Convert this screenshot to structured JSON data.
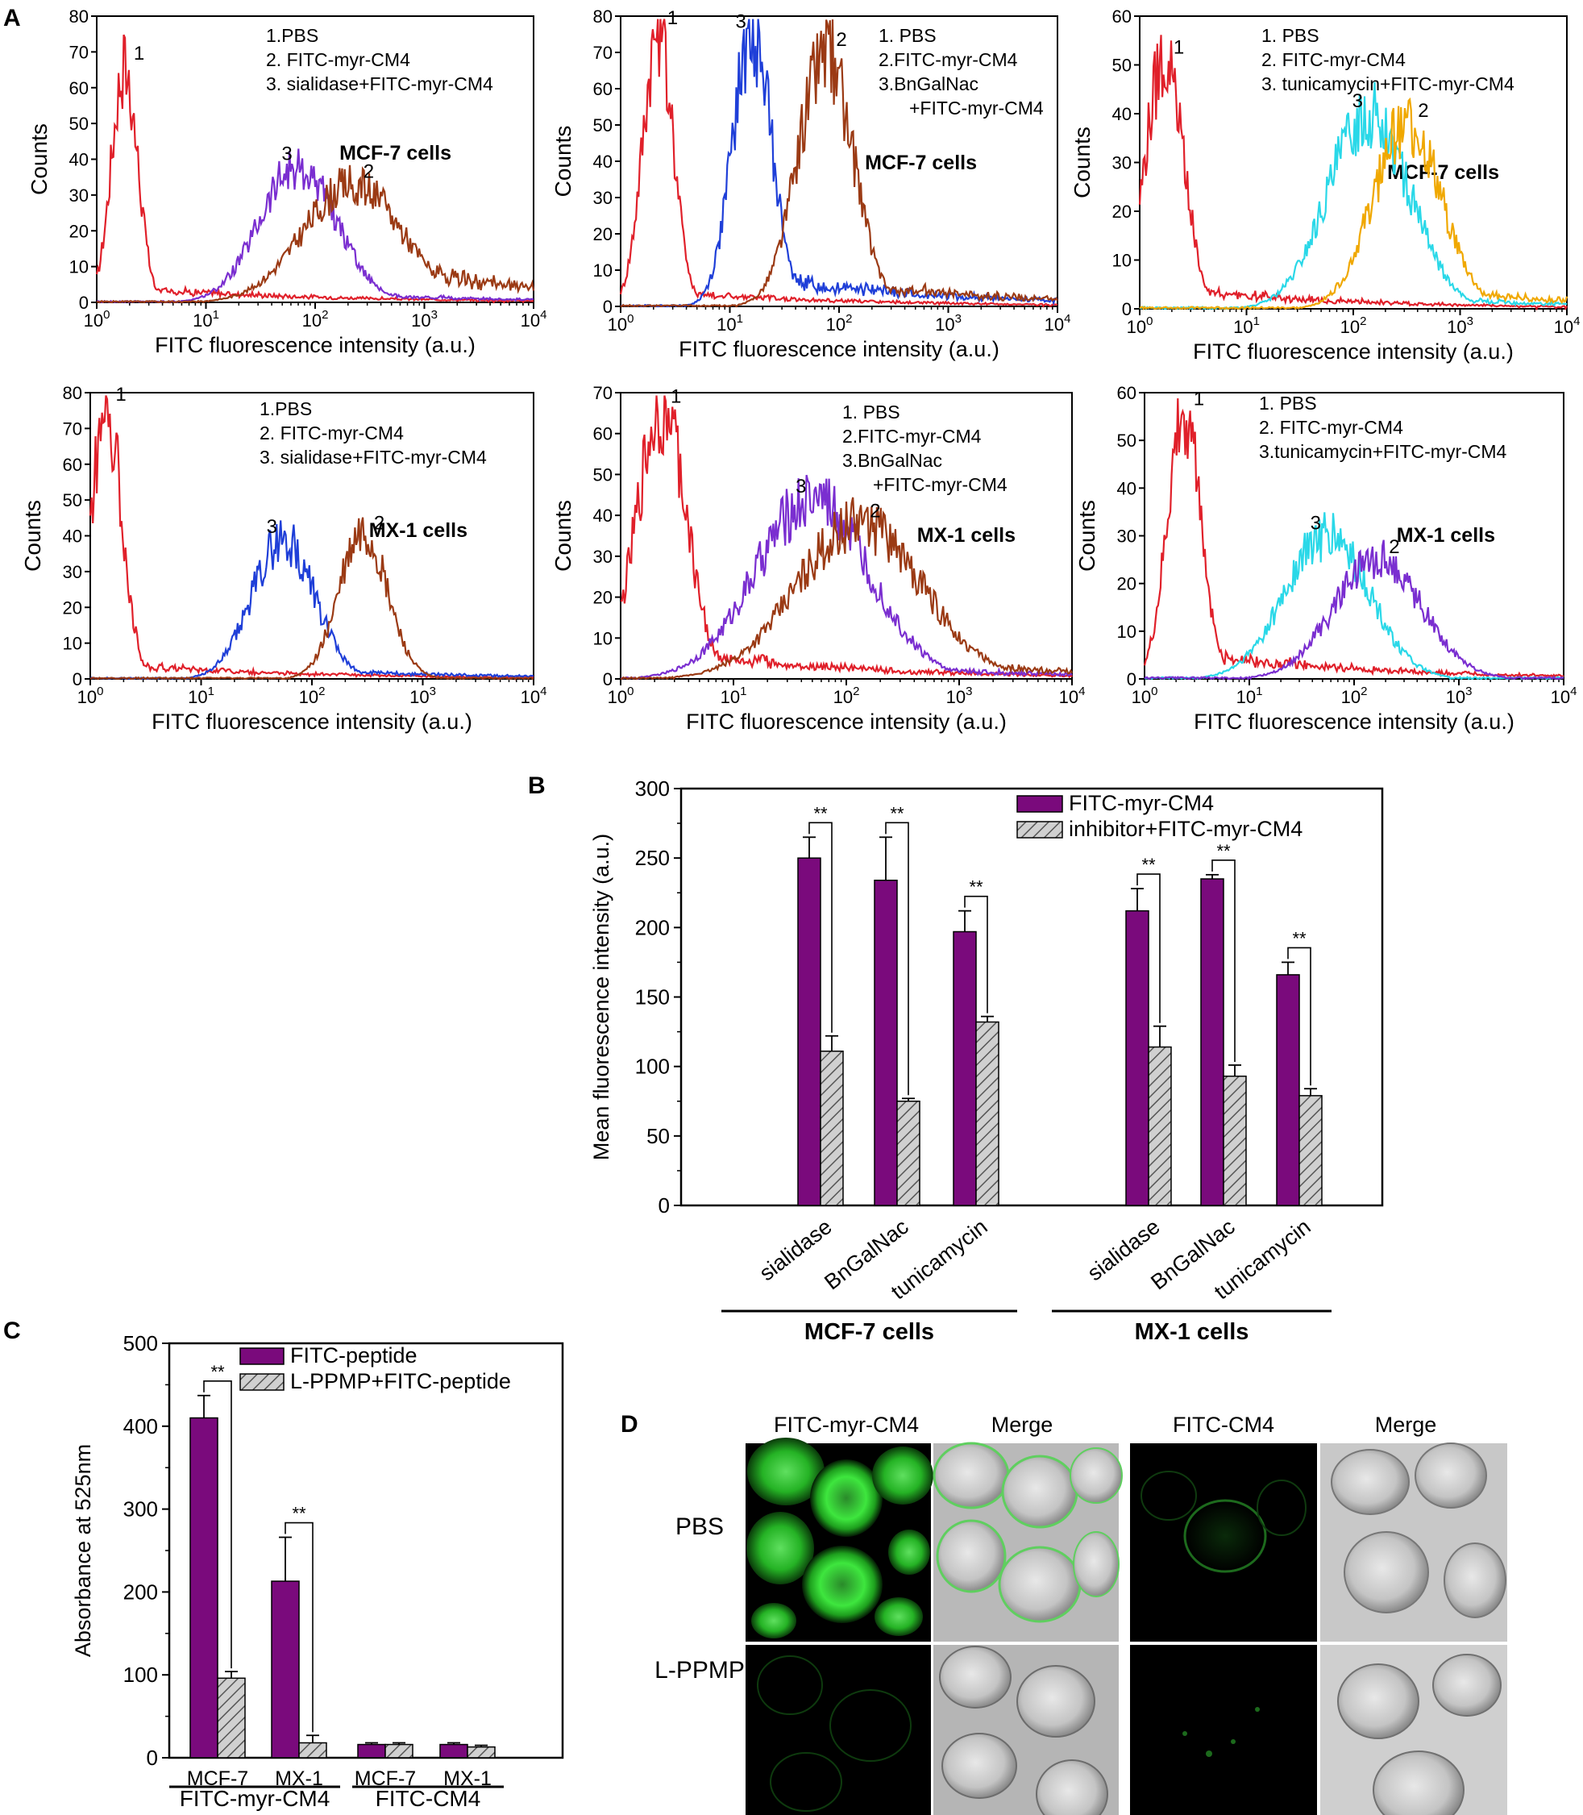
{
  "panels": [
    {
      "label": "A"
    },
    {
      "label": "B"
    },
    {
      "label": "C"
    },
    {
      "label": "D"
    }
  ],
  "colors": {
    "red": "#e0202a",
    "brown": "#9b3a14",
    "violet": "#7a2ed0",
    "blue": "#1f3fd8",
    "cyan": "#2ad8e8",
    "orange": "#f0a800",
    "purple": "#7a0a7c",
    "hatch": "#8a8a8a"
  },
  "chart_data": [
    {
      "id": "A1",
      "type": "line",
      "x_scale": "log",
      "xlim": [
        1,
        10000
      ],
      "ylim": [
        0,
        80
      ],
      "yticks": [
        0,
        10,
        20,
        30,
        40,
        50,
        60,
        70,
        80
      ],
      "xlabel": "FITC fluorescence intensity (a.u.)",
      "ylabel": "Counts",
      "cell_label": "MCF-7 cells",
      "legend": [
        "1.PBS",
        "2. FITC-myr-CM4",
        "3. sialidase+FITC-myr-CM4"
      ],
      "series": [
        {
          "name": "1",
          "color": "red",
          "center": 1.8,
          "width": 0.12,
          "peak": 66,
          "tail": 3
        },
        {
          "name": "3",
          "color": "violet",
          "center": 70,
          "width": 0.35,
          "peak": 38,
          "tail": 2
        },
        {
          "name": "2",
          "color": "brown",
          "center": 220,
          "width": 0.45,
          "peak": 33,
          "tail": 8
        }
      ]
    },
    {
      "id": "A2",
      "type": "line",
      "x_scale": "log",
      "xlim": [
        1,
        10000
      ],
      "ylim": [
        0,
        80
      ],
      "yticks": [
        0,
        10,
        20,
        30,
        40,
        50,
        60,
        70,
        80
      ],
      "xlabel": "FITC fluorescence intensity (a.u.)",
      "ylabel": "Counts",
      "cell_label": "MCF-7 cells",
      "legend": [
        "1. PBS",
        "2.FITC-myr-CM4",
        "3.BnGalNac",
        "+FITC-myr-CM4"
      ],
      "series": [
        {
          "name": "1",
          "color": "red",
          "center": 2.2,
          "width": 0.14,
          "peak": 76,
          "tail": 3
        },
        {
          "name": "3",
          "color": "blue",
          "center": 16,
          "width": 0.18,
          "peak": 75,
          "tail": 6
        },
        {
          "name": "2",
          "color": "brown",
          "center": 75,
          "width": 0.25,
          "peak": 70,
          "tail": 5
        }
      ]
    },
    {
      "id": "A3",
      "type": "line",
      "x_scale": "log",
      "xlim": [
        1,
        10000
      ],
      "ylim": [
        0,
        60
      ],
      "yticks": [
        0,
        10,
        20,
        30,
        40,
        50,
        60
      ],
      "xlabel": "FITC fluorescence intensity (a.u.)",
      "ylabel": "Counts",
      "cell_label": "MCF-7 cells",
      "legend": [
        "1. PBS",
        "2. FITC-myr-CM4",
        "3. tunicamycin+FITC-myr-CM4"
      ],
      "series": [
        {
          "name": "1",
          "color": "red",
          "center": 1.7,
          "width": 0.18,
          "peak": 51,
          "tail": 3
        },
        {
          "name": "3",
          "color": "cyan",
          "center": 140,
          "width": 0.38,
          "peak": 40,
          "tail": 2
        },
        {
          "name": "2",
          "color": "orange",
          "center": 320,
          "width": 0.32,
          "peak": 38,
          "tail": 3
        }
      ]
    },
    {
      "id": "A4",
      "type": "line",
      "x_scale": "log",
      "xlim": [
        1,
        10000
      ],
      "ylim": [
        0,
        80
      ],
      "yticks": [
        0,
        10,
        20,
        30,
        40,
        50,
        60,
        70,
        80
      ],
      "xlabel": "FITC fluorescence intensity (a.u.)",
      "ylabel": "Counts",
      "cell_label": "MX-1 cells",
      "legend": [
        "1.PBS",
        "2. FITC-myr-CM4",
        "3. sialidase+FITC-myr-CM4"
      ],
      "series": [
        {
          "name": "1",
          "color": "red",
          "center": 1.4,
          "width": 0.14,
          "peak": 76,
          "tail": 3
        },
        {
          "name": "3",
          "color": "blue",
          "center": 55,
          "width": 0.28,
          "peak": 39,
          "tail": 2
        },
        {
          "name": "2",
          "color": "brown",
          "center": 290,
          "width": 0.22,
          "peak": 40,
          "tail": 0
        }
      ]
    },
    {
      "id": "A5",
      "type": "line",
      "x_scale": "log",
      "xlim": [
        1,
        10000
      ],
      "ylim": [
        0,
        70
      ],
      "yticks": [
        0,
        10,
        20,
        30,
        40,
        50,
        60,
        70
      ],
      "xlabel": "FITC fluorescence intensity (a.u.)",
      "ylabel": "Counts",
      "cell_label": "MX-1 cells",
      "legend": [
        "1. PBS",
        "2.FITC-myr-CM4",
        "3.BnGalNac",
        "+FITC-myr-CM4"
      ],
      "series": [
        {
          "name": "1",
          "color": "red",
          "center": 2.3,
          "width": 0.22,
          "peak": 66,
          "tail": 5
        },
        {
          "name": "3",
          "color": "violet",
          "center": 50,
          "width": 0.5,
          "peak": 44,
          "tail": 3
        },
        {
          "name": "2",
          "color": "brown",
          "center": 130,
          "width": 0.55,
          "peak": 38,
          "tail": 4
        }
      ]
    },
    {
      "id": "A6",
      "type": "line",
      "x_scale": "log",
      "xlim": [
        1,
        10000
      ],
      "ylim": [
        0,
        60
      ],
      "yticks": [
        0,
        10,
        20,
        30,
        40,
        50,
        60
      ],
      "xlabel": "FITC fluorescence intensity (a.u.)",
      "ylabel": "Counts",
      "cell_label": "MX-1 cells",
      "legend": [
        "1. PBS",
        "2. FITC-myr-CM4",
        "3.tunicamycin+FITC-myr-CM4"
      ],
      "series": [
        {
          "name": "1",
          "color": "red",
          "center": 2.4,
          "width": 0.16,
          "peak": 56,
          "tail": 4
        },
        {
          "name": "3",
          "color": "cyan",
          "center": 55,
          "width": 0.4,
          "peak": 30,
          "tail": 0
        },
        {
          "name": "2",
          "color": "violet",
          "center": 170,
          "width": 0.42,
          "peak": 25,
          "tail": 0
        }
      ]
    },
    {
      "id": "B",
      "type": "bar",
      "ylabel": "Mean fluorescence intensity (a.u.)",
      "ylim": [
        0,
        300
      ],
      "yticks": [
        0,
        50,
        100,
        150,
        200,
        250,
        300
      ],
      "legend": [
        "FITC-myr-CM4",
        "inhibitor+FITC-myr-CM4"
      ],
      "significance": "**",
      "groups": [
        {
          "name": "MCF-7 cells",
          "categories": [
            "sialidase",
            "BnGalNac",
            "tunicamycin"
          ],
          "series": [
            {
              "name": "FITC-myr-CM4",
              "values": [
                250,
                234,
                197
              ],
              "errors": [
                15,
                31,
                15
              ]
            },
            {
              "name": "inhibitor+FITC-myr-CM4",
              "values": [
                111,
                75,
                132
              ],
              "errors": [
                11,
                2,
                4
              ]
            }
          ]
        },
        {
          "name": "MX-1 cells",
          "categories": [
            "sialidase",
            "BnGalNac",
            "tunicamycin"
          ],
          "series": [
            {
              "name": "FITC-myr-CM4",
              "values": [
                212,
                235,
                166
              ],
              "errors": [
                16,
                3,
                9
              ]
            },
            {
              "name": "inhibitor+FITC-myr-CM4",
              "values": [
                114,
                93,
                79
              ],
              "errors": [
                15,
                8,
                5
              ]
            }
          ]
        }
      ]
    },
    {
      "id": "C",
      "type": "bar",
      "ylabel": "Absorbance at 525nm",
      "ylim": [
        0,
        500
      ],
      "yticks": [
        0,
        100,
        200,
        300,
        400,
        500
      ],
      "legend": [
        "FITC-peptide",
        "L-PPMP+FITC-peptide"
      ],
      "significance": "**",
      "groups": [
        {
          "name": "FITC-myr-CM4",
          "categories": [
            "MCF-7",
            "MX-1"
          ],
          "series": [
            {
              "name": "FITC-peptide",
              "values": [
                410,
                213
              ],
              "errors": [
                27,
                53
              ]
            },
            {
              "name": "L-PPMP+FITC-peptide",
              "values": [
                96,
                18
              ],
              "errors": [
                8,
                9
              ]
            }
          ]
        },
        {
          "name": "FITC-CM4",
          "categories": [
            "MCF-7",
            "MX-1"
          ],
          "series": [
            {
              "name": "FITC-peptide",
              "values": [
                16,
                16
              ],
              "errors": [
                2,
                2
              ]
            },
            {
              "name": "L-PPMP+FITC-peptide",
              "values": [
                16,
                13
              ],
              "errors": [
                2,
                2
              ]
            }
          ]
        }
      ]
    }
  ],
  "panel_d": {
    "column_headers": [
      "FITC-myr-CM4",
      "Merge",
      "FITC-CM4",
      "Merge"
    ],
    "row_labels": [
      "PBS",
      "L-PPMP"
    ]
  }
}
